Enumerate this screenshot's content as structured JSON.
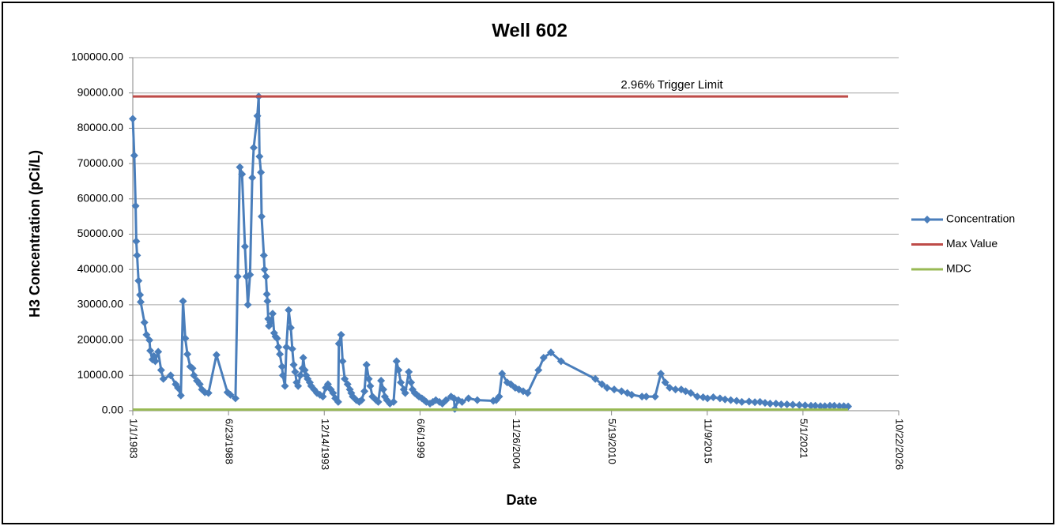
{
  "chart_data": {
    "type": "line",
    "title": "Well 602",
    "xlabel": "Date",
    "ylabel": "H3 Concentration (pCi/L)",
    "annotation": "2.96% Trigger Limit",
    "xlim": [
      "1983-01-01",
      "2026-10-22"
    ],
    "xticks": [
      {
        "value": "1983-01-01",
        "label": "1/1/1983"
      },
      {
        "value": "1988-06-23",
        "label": "6/23/1988"
      },
      {
        "value": "1993-12-14",
        "label": "12/14/1993"
      },
      {
        "value": "1999-06-06",
        "label": "6/6/1999"
      },
      {
        "value": "2004-11-26",
        "label": "11/26/2004"
      },
      {
        "value": "2010-05-19",
        "label": "5/19/2010"
      },
      {
        "value": "2015-11-09",
        "label": "11/9/2015"
      },
      {
        "value": "2021-05-01",
        "label": "5/1/2021"
      },
      {
        "value": "2026-10-22",
        "label": "10/22/2026"
      }
    ],
    "ylim": [
      0,
      100000
    ],
    "yticks": [
      {
        "value": 0,
        "label": "0.00"
      },
      {
        "value": 10000,
        "label": "10000.00"
      },
      {
        "value": 20000,
        "label": "20000.00"
      },
      {
        "value": 30000,
        "label": "30000.00"
      },
      {
        "value": 40000,
        "label": "40000.00"
      },
      {
        "value": 50000,
        "label": "50000.00"
      },
      {
        "value": 60000,
        "label": "60000.00"
      },
      {
        "value": 70000,
        "label": "70000.00"
      },
      {
        "value": 80000,
        "label": "80000.00"
      },
      {
        "value": 90000,
        "label": "90000.00"
      },
      {
        "value": 100000,
        "label": "100000.00"
      }
    ],
    "grid": true,
    "legend": "right",
    "series": [
      {
        "name": "Concentration",
        "color": "#4a7ebb",
        "marker": "diamond",
        "x": [
          "1983-01-01",
          "1983-02-01",
          "1983-03-01",
          "1983-03-15",
          "1983-04-01",
          "1983-05-01",
          "1983-06-01",
          "1983-06-15",
          "1983-09-01",
          "1983-10-15",
          "1983-12-15",
          "1984-01-01",
          "1984-02-15",
          "1984-03-15",
          "1984-04-15",
          "1984-06-15",
          "1984-08-15",
          "1984-10-01",
          "1985-03-01",
          "1985-06-15",
          "1985-08-01",
          "1985-10-01",
          "1985-11-15",
          "1986-01-01",
          "1986-02-15",
          "1986-04-15",
          "1986-06-01",
          "1986-07-01",
          "1986-09-01",
          "1986-11-01",
          "1986-12-15",
          "1987-02-15",
          "1987-05-01",
          "1987-10-15",
          "1988-06-01",
          "1988-08-01",
          "1988-11-15",
          "1989-01-01",
          "1989-02-15",
          "1989-04-01",
          "1989-06-01",
          "1989-07-01",
          "1989-08-01",
          "1989-09-15",
          "1989-11-01",
          "1989-12-01",
          "1990-02-15",
          "1990-03-15",
          "1990-04-01",
          "1990-05-01",
          "1990-05-15",
          "1990-07-01",
          "1990-07-15",
          "1990-08-15",
          "1990-09-01",
          "1990-09-15",
          "1990-10-01",
          "1990-10-15",
          "1990-11-15",
          "1991-01-01",
          "1991-02-01",
          "1991-03-01",
          "1991-04-01",
          "1991-05-01",
          "1991-06-01",
          "1991-07-15",
          "1991-08-01",
          "1991-09-15",
          "1991-10-15",
          "1991-12-01",
          "1992-01-15",
          "1992-02-15",
          "1992-03-15",
          "1992-04-15",
          "1992-05-15",
          "1992-06-15",
          "1992-08-01",
          "1992-09-15",
          "1992-10-01",
          "1992-11-01",
          "1992-12-01",
          "1993-01-01",
          "1993-02-15",
          "1993-03-15",
          "1993-05-15",
          "1993-07-15",
          "1993-09-15",
          "1993-11-15",
          "1994-01-15",
          "1994-03-01",
          "1994-05-01",
          "1994-06-15",
          "1994-08-01",
          "1994-10-01",
          "1994-10-15",
          "1994-12-01",
          "1995-01-01",
          "1995-02-15",
          "1995-04-15",
          "1995-06-01",
          "1995-07-01",
          "1995-08-01",
          "1995-10-15",
          "1995-12-15",
          "1996-02-01",
          "1996-04-01",
          "1996-05-15",
          "1996-07-01",
          "1996-08-01",
          "1996-09-15",
          "1996-12-01",
          "1997-01-15",
          "1997-03-15",
          "1997-05-01",
          "1997-06-01",
          "1997-07-15",
          "1997-09-15",
          "1997-12-01",
          "1998-02-01",
          "1998-03-15",
          "1998-05-01",
          "1998-07-01",
          "1998-08-01",
          "1998-10-15",
          "1998-12-01",
          "1999-01-01",
          "1999-02-15",
          "1999-04-01",
          "1999-05-15",
          "1999-07-15",
          "1999-09-01",
          "1999-10-15",
          "2000-01-01",
          "2000-03-01",
          "2000-05-01",
          "2000-07-15",
          "2000-09-15",
          "2000-12-01",
          "2001-03-15",
          "2001-05-15",
          "2001-06-01",
          "2001-08-15",
          "2001-11-01",
          "2002-03-15",
          "2002-09-15",
          "2003-08-15",
          "2003-10-15",
          "2003-12-15",
          "2004-02-15",
          "2004-06-01",
          "2004-08-15",
          "2004-11-15",
          "2005-02-01",
          "2005-05-01",
          "2005-08-01",
          "2006-03-15",
          "2006-07-01",
          "2006-12-01",
          "2007-07-01",
          "2009-06-15",
          "2009-11-01",
          "2010-02-15",
          "2010-07-15",
          "2010-12-15",
          "2011-04-15",
          "2011-07-15",
          "2012-02-15",
          "2012-05-15",
          "2012-11-15",
          "2013-03-15",
          "2013-06-15",
          "2013-09-15",
          "2014-01-15",
          "2014-05-15",
          "2014-08-15",
          "2014-12-01",
          "2015-04-15",
          "2015-08-15",
          "2015-11-15",
          "2016-03-15",
          "2016-08-01",
          "2016-11-15",
          "2017-03-15",
          "2017-07-15",
          "2017-11-01",
          "2018-04-01",
          "2018-08-01",
          "2018-11-15",
          "2019-03-01",
          "2019-06-15",
          "2019-10-15",
          "2020-02-01",
          "2020-06-01",
          "2020-10-01",
          "2021-02-15",
          "2021-06-15",
          "2021-10-15",
          "2022-01-15",
          "2022-05-01",
          "2022-08-01",
          "2022-11-15",
          "2023-02-15",
          "2023-06-01",
          "2023-09-01",
          "2023-12-01"
        ],
        "values": [
          82700,
          72300,
          58000,
          48000,
          44000,
          36800,
          32800,
          30800,
          25000,
          21500,
          20000,
          17000,
          14500,
          15500,
          14000,
          16700,
          11500,
          9000,
          10000,
          7500,
          6500,
          4300,
          31000,
          20500,
          16000,
          12500,
          12000,
          10000,
          8500,
          7500,
          6000,
          5200,
          5000,
          15800,
          5200,
          4500,
          3500,
          38000,
          69000,
          67000,
          46500,
          38000,
          30000,
          38500,
          66000,
          74500,
          83500,
          89000,
          72000,
          67500,
          55000,
          44000,
          40000,
          38000,
          33000,
          31000,
          26000,
          24000,
          25000,
          27500,
          22000,
          21000,
          20500,
          18000,
          16000,
          12500,
          10000,
          7000,
          18000,
          28500,
          23500,
          17500,
          13000,
          11000,
          8000,
          7000,
          10000,
          12000,
          15000,
          11500,
          10000,
          9000,
          8000,
          7000,
          6000,
          5000,
          4500,
          4000,
          6500,
          7500,
          6000,
          5000,
          3500,
          2500,
          19000,
          21500,
          14000,
          9000,
          7500,
          6000,
          5000,
          4000,
          3000,
          2500,
          3000,
          5500,
          13000,
          9000,
          7000,
          4000,
          3000,
          2500,
          8500,
          6000,
          4000,
          3000,
          2000,
          2500,
          14000,
          11500,
          8000,
          6000,
          5000,
          11000,
          8000,
          6000,
          5000,
          4500,
          4000,
          3500,
          3000,
          2500,
          2000,
          2500,
          3000,
          2500,
          2000,
          3000,
          4000,
          3500,
          500,
          3000,
          2500,
          3500,
          3000,
          2800,
          3000,
          4000,
          10500,
          8000,
          7500,
          6500,
          6000,
          5500,
          5000,
          11500,
          15000,
          16500,
          14000,
          9000,
          7500,
          6500,
          6000,
          5500,
          5000,
          4500,
          4000,
          4000,
          4000,
          10500,
          8000,
          6500,
          6000,
          6000,
          5500,
          5000,
          4000,
          3800,
          3500,
          3800,
          3500,
          3200,
          3000,
          2800,
          2500,
          2600,
          2400,
          2500,
          2200,
          2000,
          2000,
          1800,
          1800,
          1700,
          1600,
          1500,
          1400,
          1400,
          1300,
          1300,
          1400,
          1400,
          1300,
          1300,
          1200
        ]
      },
      {
        "name": "Max Value",
        "color": "#be4b48",
        "x": [
          "1983-01-01",
          "2023-12-01"
        ],
        "values": [
          89000,
          89000
        ]
      },
      {
        "name": "MDC",
        "color": "#98b954",
        "x": [
          "1983-01-01",
          "2023-12-01"
        ],
        "values": [
          300,
          300
        ]
      }
    ]
  }
}
